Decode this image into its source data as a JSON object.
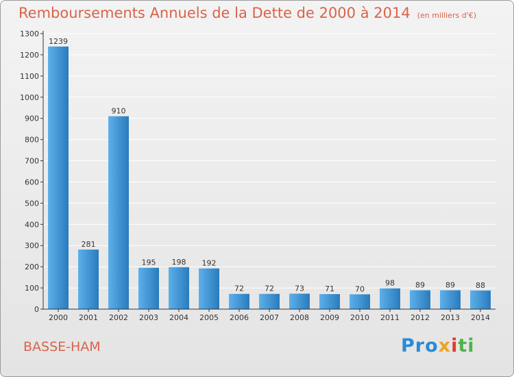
{
  "header": {
    "title": "Remboursements Annuels de la Dette de 2000 à 2014",
    "unit": "(en milliers d'€)"
  },
  "footer": {
    "place": "BASSE-HAM",
    "logo": [
      "Pro",
      "x",
      "i",
      "ti"
    ]
  },
  "colors": {
    "bar_light": "#5cb0ea",
    "bar_dark": "#2a7bbd",
    "axis": "#333333",
    "grid": "#ffffff",
    "title": "#d9634a"
  },
  "chart_data": {
    "type": "bar",
    "title": "Remboursements Annuels de la Dette de 2000 à 2014",
    "xlabel": "",
    "ylabel": "",
    "ylim": [
      0,
      1300
    ],
    "yticks": [
      0,
      100,
      200,
      300,
      400,
      500,
      600,
      700,
      800,
      900,
      1000,
      1100,
      1200,
      1300
    ],
    "grid": true,
    "categories": [
      "2000",
      "2001",
      "2002",
      "2003",
      "2004",
      "2005",
      "2006",
      "2007",
      "2008",
      "2009",
      "2010",
      "2011",
      "2012",
      "2013",
      "2014"
    ],
    "values": [
      1239,
      281,
      910,
      195,
      198,
      192,
      72,
      72,
      73,
      71,
      70,
      98,
      89,
      89,
      88
    ]
  }
}
